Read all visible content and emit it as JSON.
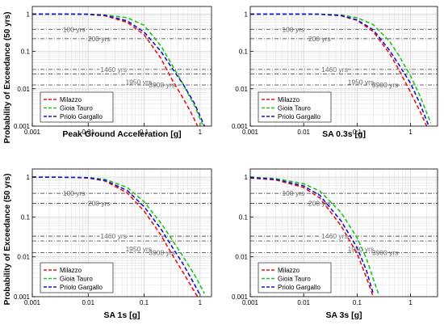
{
  "colors": {
    "Milazzo": "#e8141b",
    "Gioia Tauro": "#1bc41b",
    "Priolo Gargallo": "#1414c8",
    "return_period_lines": "#555555",
    "grid": "#d4d4d4",
    "annotation_text": "#666666"
  },
  "chart_data": [
    {
      "type": "line",
      "panel": "top-left",
      "xlabel": "Peak Ground Acceleration [g]",
      "ylabel": "Probability of Exceedance (50 yrs)",
      "xscale": "log",
      "yscale": "log",
      "xlim": [
        0.001,
        1.6
      ],
      "ylim": [
        0.001,
        1.6
      ],
      "x_tick_labels": [
        "0.001",
        "0.01",
        "0.1",
        "1"
      ],
      "y_tick_labels": [
        "0.001",
        "0.01",
        "0.1",
        "1"
      ],
      "grid": true,
      "legend_position": "bottom-left",
      "return_periods": [
        {
          "label": "100 yrs",
          "value": 0.39
        },
        {
          "label": "200 yrs",
          "value": 0.22
        },
        {
          "label": "1460 yrs",
          "value": 0.033
        },
        {
          "label": "1950 yrs",
          "value": 0.025
        },
        {
          "label": "3900 yrs",
          "value": 0.0127
        }
      ],
      "series": [
        {
          "name": "Milazzo",
          "x": [
            0.001,
            0.005,
            0.01,
            0.02,
            0.05,
            0.1,
            0.2,
            0.3,
            0.5,
            0.7,
            0.9
          ],
          "y": [
            1,
            1,
            0.98,
            0.9,
            0.6,
            0.28,
            0.065,
            0.02,
            0.0055,
            0.0022,
            0.001
          ]
        },
        {
          "name": "Gioia Tauro",
          "x": [
            0.001,
            0.005,
            0.01,
            0.02,
            0.05,
            0.1,
            0.2,
            0.3,
            0.5,
            0.8,
            1.1
          ],
          "y": [
            1,
            1,
            0.99,
            0.95,
            0.8,
            0.5,
            0.14,
            0.05,
            0.013,
            0.0035,
            0.0011
          ]
        },
        {
          "name": "Priolo Gargallo",
          "x": [
            0.001,
            0.005,
            0.01,
            0.02,
            0.05,
            0.1,
            0.2,
            0.3,
            0.5,
            0.8,
            1.2
          ],
          "y": [
            1,
            1,
            0.99,
            0.93,
            0.66,
            0.33,
            0.1,
            0.04,
            0.013,
            0.004,
            0.001
          ]
        }
      ]
    },
    {
      "type": "line",
      "panel": "top-right",
      "xlabel": "SA 0.3s [g]",
      "ylabel": "",
      "xscale": "log",
      "yscale": "log",
      "xlim": [
        0.001,
        3.2
      ],
      "ylim": [
        0.001,
        1.6
      ],
      "x_tick_labels": [
        "0.001",
        "0.01",
        "0.1",
        "1"
      ],
      "y_tick_labels": [
        "0.001",
        "0.01",
        "0.1",
        "1"
      ],
      "grid": true,
      "legend_position": "bottom-left",
      "return_periods": [
        {
          "label": "100 yrs",
          "value": 0.39
        },
        {
          "label": "200 yrs",
          "value": 0.22
        },
        {
          "label": "1460 yrs",
          "value": 0.033
        },
        {
          "label": "1950 yrs",
          "value": 0.025
        },
        {
          "label": "3900 yrs",
          "value": 0.0127
        }
      ],
      "series": [
        {
          "name": "Milazzo",
          "x": [
            0.001,
            0.01,
            0.02,
            0.05,
            0.1,
            0.2,
            0.4,
            0.6,
            1.0,
            1.5,
            2.0
          ],
          "y": [
            1,
            1,
            0.99,
            0.9,
            0.68,
            0.34,
            0.09,
            0.033,
            0.008,
            0.0025,
            0.001
          ]
        },
        {
          "name": "Gioia Tauro",
          "x": [
            0.001,
            0.01,
            0.02,
            0.05,
            0.1,
            0.2,
            0.4,
            0.6,
            1.0,
            1.5,
            2.4
          ],
          "y": [
            1,
            1,
            0.99,
            0.95,
            0.8,
            0.52,
            0.19,
            0.08,
            0.022,
            0.0065,
            0.0012
          ]
        },
        {
          "name": "Priolo Gargallo",
          "x": [
            0.001,
            0.01,
            0.02,
            0.05,
            0.1,
            0.2,
            0.4,
            0.6,
            1.0,
            1.5,
            2.2
          ],
          "y": [
            1,
            1,
            0.99,
            0.92,
            0.7,
            0.38,
            0.11,
            0.045,
            0.014,
            0.004,
            0.001
          ]
        }
      ]
    },
    {
      "type": "line",
      "panel": "bottom-left",
      "xlabel": "SA 1s [g]",
      "ylabel": "Probability of Exceedance (50 yrs)",
      "xscale": "log",
      "yscale": "log",
      "xlim": [
        0.001,
        1.6
      ],
      "ylim": [
        0.001,
        1.6
      ],
      "x_tick_labels": [
        "0.001",
        "0.01",
        "0.1",
        "1"
      ],
      "y_tick_labels": [
        "0.001",
        "0.01",
        "0.1",
        "1"
      ],
      "grid": true,
      "legend_position": "bottom-left",
      "return_periods": [
        {
          "label": "100 yrs",
          "value": 0.39
        },
        {
          "label": "200 yrs",
          "value": 0.22
        },
        {
          "label": "1460 yrs",
          "value": 0.033
        },
        {
          "label": "1950 yrs",
          "value": 0.025
        },
        {
          "label": "3900 yrs",
          "value": 0.0127
        }
      ],
      "series": [
        {
          "name": "Milazzo",
          "x": [
            0.001,
            0.005,
            0.01,
            0.02,
            0.05,
            0.1,
            0.2,
            0.3,
            0.5,
            0.7,
            0.9
          ],
          "y": [
            1,
            0.99,
            0.95,
            0.8,
            0.4,
            0.14,
            0.035,
            0.013,
            0.004,
            0.0018,
            0.001
          ]
        },
        {
          "name": "Gioia Tauro",
          "x": [
            0.001,
            0.005,
            0.01,
            0.02,
            0.05,
            0.1,
            0.2,
            0.3,
            0.5,
            0.8,
            1.2
          ],
          "y": [
            1,
            0.99,
            0.97,
            0.88,
            0.55,
            0.24,
            0.07,
            0.03,
            0.01,
            0.0035,
            0.0012
          ]
        },
        {
          "name": "Priolo Gargallo",
          "x": [
            0.001,
            0.005,
            0.01,
            0.02,
            0.05,
            0.1,
            0.2,
            0.3,
            0.5,
            0.8,
            1.0
          ],
          "y": [
            1,
            0.99,
            0.96,
            0.83,
            0.46,
            0.18,
            0.05,
            0.02,
            0.0065,
            0.002,
            0.0011
          ]
        }
      ]
    },
    {
      "type": "line",
      "panel": "bottom-right",
      "xlabel": "SA 3s [g]",
      "ylabel": "",
      "xscale": "log",
      "yscale": "log",
      "xlim": [
        0.001,
        3.2
      ],
      "ylim": [
        0.001,
        1.6
      ],
      "x_tick_labels": [
        "0.001",
        "0.01",
        "0.1",
        "1"
      ],
      "y_tick_labels": [
        "0.001",
        "0.01",
        "0.1",
        "1"
      ],
      "grid": true,
      "legend_position": "bottom-left",
      "return_periods": [
        {
          "label": "100 yrs",
          "value": 0.39
        },
        {
          "label": "200 yrs",
          "value": 0.22
        },
        {
          "label": "1460 yrs",
          "value": 0.033
        },
        {
          "label": "1950 yrs",
          "value": 0.025
        },
        {
          "label": "3900 yrs",
          "value": 0.0127
        }
      ],
      "series": [
        {
          "name": "Milazzo",
          "x": [
            0.001,
            0.003,
            0.01,
            0.02,
            0.05,
            0.1,
            0.15,
            0.2
          ],
          "y": [
            0.95,
            0.85,
            0.55,
            0.3,
            0.06,
            0.012,
            0.003,
            0.001
          ]
        },
        {
          "name": "Gioia Tauro",
          "x": [
            0.001,
            0.003,
            0.01,
            0.02,
            0.05,
            0.1,
            0.15,
            0.2,
            0.25
          ],
          "y": [
            1,
            0.92,
            0.68,
            0.45,
            0.13,
            0.03,
            0.009,
            0.0028,
            0.0012
          ]
        },
        {
          "name": "Priolo Gargallo",
          "x": [
            0.001,
            0.003,
            0.01,
            0.02,
            0.05,
            0.1,
            0.15,
            0.2
          ],
          "y": [
            0.97,
            0.88,
            0.6,
            0.35,
            0.08,
            0.017,
            0.0045,
            0.0012
          ]
        }
      ]
    }
  ]
}
